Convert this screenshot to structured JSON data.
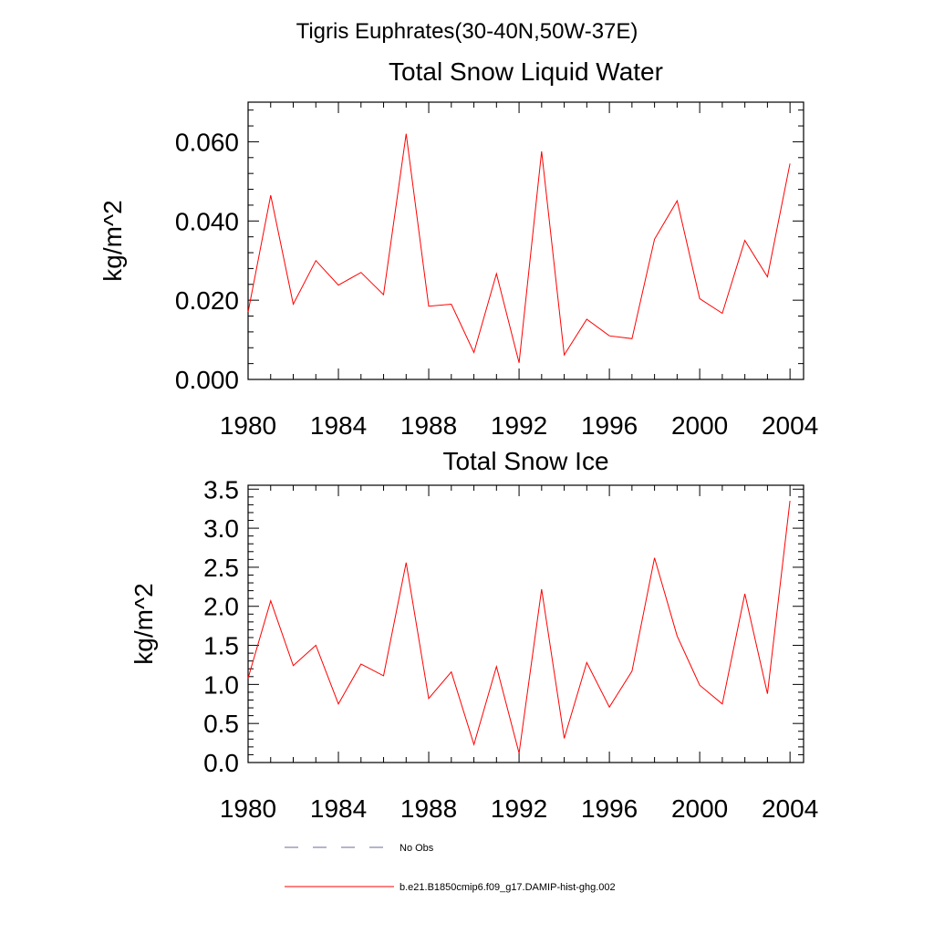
{
  "figure": {
    "suptitle": "Tigris Euphrates(30-40N,50W-37E)"
  },
  "chart_data": [
    {
      "type": "line",
      "title": "Total Snow Liquid Water",
      "xlabel": "",
      "ylabel": "kg/m^2",
      "xlim": [
        1980,
        2004.6
      ],
      "ylim": [
        0,
        0.07
      ],
      "xticks": [
        1980,
        1984,
        1988,
        1992,
        1996,
        2000,
        2004
      ],
      "xtick_labels": [
        "1980",
        "1984",
        "1988",
        "1992",
        "1996",
        "2000",
        "2004"
      ],
      "yticks": [
        0,
        0.02,
        0.04,
        0.06
      ],
      "ytick_labels": [
        "0.000",
        "0.020",
        "0.040",
        "0.060"
      ],
      "x": [
        1980,
        1981,
        1982,
        1983,
        1984,
        1985,
        1986,
        1987,
        1988,
        1989,
        1990,
        1991,
        1992,
        1993,
        1994,
        1995,
        1996,
        1997,
        1998,
        1999,
        2000,
        2001,
        2002,
        2003,
        2004
      ],
      "series": [
        {
          "name": "b.e21.B1850cmip6.f09_g17.DAMIP-hist-ghg.002",
          "color": "#ff0000",
          "values": [
            0.017,
            0.0465,
            0.019,
            0.03,
            0.0238,
            0.027,
            0.0214,
            0.062,
            0.0185,
            0.019,
            0.0068,
            0.0267,
            0.0042,
            0.0576,
            0.0062,
            0.0152,
            0.011,
            0.0103,
            0.0354,
            0.0451,
            0.0204,
            0.0167,
            0.0351,
            0.0259,
            0.0545
          ]
        }
      ]
    },
    {
      "type": "line",
      "title": "Total Snow Ice",
      "xlabel": "",
      "ylabel": "kg/m^2",
      "xlim": [
        1980,
        2004.6
      ],
      "ylim": [
        0,
        3.55
      ],
      "xticks": [
        1980,
        1984,
        1988,
        1992,
        1996,
        2000,
        2004
      ],
      "xtick_labels": [
        "1980",
        "1984",
        "1988",
        "1992",
        "1996",
        "2000",
        "2004"
      ],
      "yticks": [
        0,
        0.5,
        1.0,
        1.5,
        2.0,
        2.5,
        3.0,
        3.5
      ],
      "ytick_labels": [
        "0.0",
        "0.5",
        "1.0",
        "1.5",
        "2.0",
        "2.5",
        "3.0",
        "3.5"
      ],
      "x": [
        1980,
        1981,
        1982,
        1983,
        1984,
        1985,
        1986,
        1987,
        1988,
        1989,
        1990,
        1991,
        1992,
        1993,
        1994,
        1995,
        1996,
        1997,
        1998,
        1999,
        2000,
        2001,
        2002,
        2003,
        2004
      ],
      "series": [
        {
          "name": "b.e21.B1850cmip6.f09_g17.DAMIP-hist-ghg.002",
          "color": "#ff0000",
          "values": [
            1.08,
            2.07,
            1.24,
            1.5,
            0.75,
            1.26,
            1.11,
            2.56,
            0.82,
            1.16,
            0.23,
            1.23,
            0.12,
            2.22,
            0.31,
            1.28,
            0.71,
            1.17,
            2.62,
            1.62,
            0.99,
            0.75,
            2.16,
            0.88,
            3.35
          ]
        }
      ]
    }
  ],
  "legend": {
    "placement": "bottom",
    "items": [
      {
        "label": "No Obs",
        "color": "#6b6b9a",
        "style": "dashed"
      },
      {
        "label": "b.e21.B1850cmip6.f09_g17.DAMIP-hist-ghg.002",
        "color": "#ff0000",
        "style": "solid"
      }
    ]
  }
}
